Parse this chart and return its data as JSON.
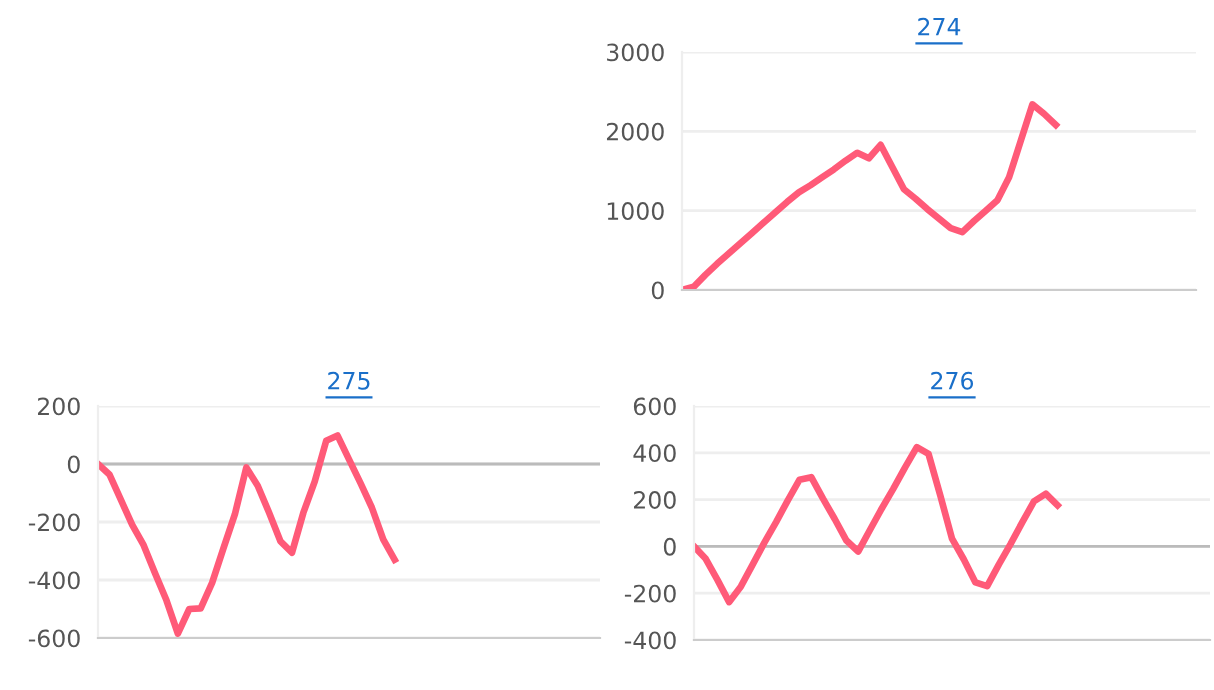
{
  "chart_data": [
    {
      "type": "line",
      "title": "274",
      "categories": [
        null,
        null,
        null,
        null,
        null,
        null,
        null,
        null,
        null,
        null,
        null,
        null,
        null,
        null,
        null,
        null,
        null,
        null,
        null,
        null,
        null,
        null,
        null,
        null,
        null,
        null,
        null,
        null,
        null,
        null,
        null,
        null,
        null,
        null,
        null,
        null,
        null,
        null,
        null,
        null,
        null,
        null,
        null,
        null,
        null
      ],
      "series": [
        {
          "color": "#ff5a78",
          "values": [
            0,
            40,
            190,
            330,
            460,
            590,
            720,
            850,
            980,
            1110,
            1230,
            1320,
            1420,
            1520,
            1630,
            1730,
            1660,
            1830,
            1550,
            1270,
            1150,
            1020,
            900,
            780,
            730,
            870,
            1000,
            1130,
            1420,
            1880,
            2340,
            2220,
            2080,
            null,
            null,
            null,
            null,
            null,
            null,
            null,
            null,
            null,
            null,
            null,
            null
          ]
        }
      ],
      "ylim": [
        0,
        3000
      ],
      "yticks": [
        0,
        1000,
        2000,
        3000
      ],
      "grid": "y",
      "marker": "none",
      "line_style": "solid",
      "tick_labels": "y"
    },
    {
      "type": "line",
      "title": "275",
      "categories": [
        null,
        null,
        null,
        null,
        null,
        null,
        null,
        null,
        null,
        null,
        null,
        null,
        null,
        null,
        null,
        null,
        null,
        null,
        null,
        null,
        null,
        null,
        null,
        null,
        null,
        null,
        null,
        null,
        null,
        null,
        null,
        null,
        null,
        null,
        null,
        null,
        null,
        null,
        null,
        null,
        null,
        null,
        null,
        null,
        null
      ],
      "series": [
        {
          "color": "#ff5a78",
          "values": [
            0,
            -36,
            -123,
            -210,
            -280,
            -377,
            -470,
            -585,
            -500,
            -498,
            -410,
            -290,
            -173,
            -12,
            -75,
            -168,
            -267,
            -306,
            -168,
            -60,
            80,
            98,
            16,
            -65,
            -150,
            -260,
            -330,
            null,
            null,
            null,
            null,
            null,
            null,
            null,
            null,
            null,
            null,
            null,
            null,
            null,
            null,
            null,
            null,
            null,
            null
          ]
        }
      ],
      "ylim": [
        -600,
        200
      ],
      "yticks": [
        -600,
        -400,
        -200,
        0,
        200
      ],
      "grid": "y",
      "marker": "none",
      "line_style": "solid",
      "tick_labels": "y",
      "ref_lines": [
        {
          "axis": "y",
          "value": 0,
          "color": "#bbbbbb"
        }
      ]
    },
    {
      "type": "line",
      "title": "276",
      "categories": [
        null,
        null,
        null,
        null,
        null,
        null,
        null,
        null,
        null,
        null,
        null,
        null,
        null,
        null,
        null,
        null,
        null,
        null,
        null,
        null,
        null,
        null,
        null,
        null,
        null,
        null,
        null,
        null,
        null,
        null,
        null,
        null,
        null,
        null,
        null,
        null,
        null,
        null,
        null,
        null,
        null,
        null,
        null,
        null,
        null
      ],
      "series": [
        {
          "color": "#ff5a78",
          "values": [
            0,
            -53,
            -143,
            -238,
            -171,
            -78,
            16,
            104,
            197,
            285,
            296,
            204,
            117,
            25,
            -22,
            70,
            161,
            247,
            338,
            424,
            395,
            218,
            33,
            -55,
            -154,
            -170,
            -77,
            11,
            104,
            193,
            225,
            176,
            null,
            null,
            null,
            null,
            null,
            null,
            null,
            null,
            null,
            null,
            null,
            null,
            null
          ]
        }
      ],
      "ylim": [
        -400,
        600
      ],
      "yticks": [
        -400,
        -200,
        0,
        200,
        400,
        600
      ],
      "grid": "y",
      "marker": "none",
      "line_style": "solid",
      "tick_labels": "y",
      "ref_lines": [
        {
          "axis": "y",
          "value": 0,
          "color": "#bbbbbb"
        }
      ]
    }
  ]
}
